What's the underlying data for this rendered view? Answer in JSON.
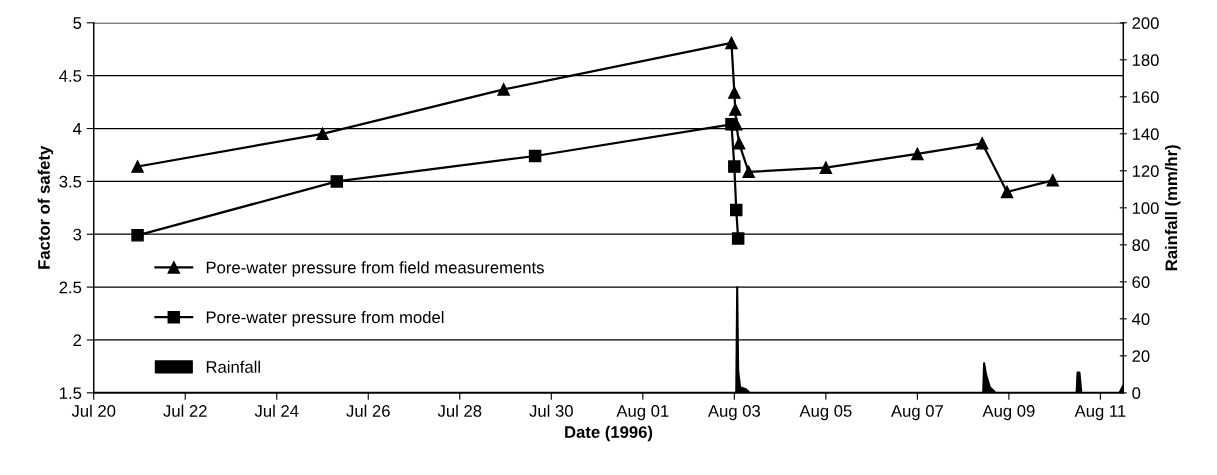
{
  "chart_data": {
    "type": "line",
    "xlabel": "Date (1996)",
    "ylabel": "Factor of safety",
    "y2label": "Rainfall (mm/hr)",
    "xlim": [
      "1996-07-20T00:00",
      "1996-08-11T12:00"
    ],
    "xticks": [
      {
        "value": "1996-07-20",
        "label": "Jul 20"
      },
      {
        "value": "1996-07-22",
        "label": "Jul 22"
      },
      {
        "value": "1996-07-24",
        "label": "Jul 24"
      },
      {
        "value": "1996-07-26",
        "label": "Jul 26"
      },
      {
        "value": "1996-07-28",
        "label": "Jul 28"
      },
      {
        "value": "1996-07-30",
        "label": "Jul 30"
      },
      {
        "value": "1996-08-01",
        "label": "Aug 01"
      },
      {
        "value": "1996-08-03",
        "label": "Aug 03"
      },
      {
        "value": "1996-08-05",
        "label": "Aug 05"
      },
      {
        "value": "1996-08-07",
        "label": "Aug 07"
      },
      {
        "value": "1996-08-09",
        "label": "Aug 09"
      },
      {
        "value": "1996-08-11",
        "label": "Aug 11"
      }
    ],
    "ylim": [
      1.5,
      5
    ],
    "yticks": [
      1.5,
      2,
      2.5,
      3,
      3.5,
      4,
      4.5,
      5
    ],
    "y2lim": [
      0,
      200
    ],
    "y2ticks": [
      0,
      20,
      40,
      60,
      80,
      100,
      120,
      140,
      160,
      180,
      200
    ],
    "grid": "y",
    "legend": "bottom left",
    "line_style": "solid",
    "series": [
      {
        "name": "Pore-water pressure from field measurements",
        "marker": "triangle",
        "color": "#000000",
        "x": [
          "1996-07-20T23:00",
          "1996-07-25T00:00",
          "1996-07-28T23:00",
          "1996-08-02T22:30",
          "1996-08-03T00:00",
          "1996-08-03T00:30",
          "1996-08-03T01:00",
          "1996-08-03T02:30",
          "1996-08-03T07:30",
          "1996-08-05T00:00",
          "1996-08-07T00:00",
          "1996-08-08T10:00",
          "1996-08-08T23:00",
          "1996-08-09T23:00"
        ],
        "values": [
          3.64,
          3.95,
          4.37,
          4.81,
          4.34,
          4.18,
          4.04,
          3.86,
          3.59,
          3.63,
          3.76,
          3.86,
          3.4,
          3.51
        ]
      },
      {
        "name": "Pore-water pressure from model",
        "marker": "square",
        "color": "#000000",
        "x": [
          "1996-07-20T23:00",
          "1996-07-25T07:30",
          "1996-07-29T15:30",
          "1996-08-02T22:30",
          "1996-08-03T00:00",
          "1996-08-03T01:00",
          "1996-08-03T02:00"
        ],
        "values": [
          2.99,
          3.5,
          3.74,
          4.04,
          3.64,
          3.23,
          2.96
        ]
      },
      {
        "name": "Rainfall",
        "type": "area",
        "axis": "y2",
        "color": "#000000",
        "x": [
          "1996-07-20T00:00",
          "1996-08-03T01:00",
          "1996-08-03T01:30",
          "1996-08-03T02:00",
          "1996-08-03T03:00",
          "1996-08-03T06:00",
          "1996-08-03T08:00",
          "1996-08-08T10:30",
          "1996-08-08T11:00",
          "1996-08-08T12:00",
          "1996-08-08T14:00",
          "1996-08-08T17:00",
          "1996-08-10T11:30",
          "1996-08-10T12:00",
          "1996-08-10T13:00",
          "1996-08-10T14:00",
          "1996-08-11T10:00",
          "1996-08-11T12:00"
        ],
        "values": [
          0,
          0,
          57,
          12,
          3,
          2,
          0,
          0,
          16,
          10,
          3,
          0,
          0,
          11,
          11,
          0,
          0,
          4
        ]
      }
    ]
  }
}
